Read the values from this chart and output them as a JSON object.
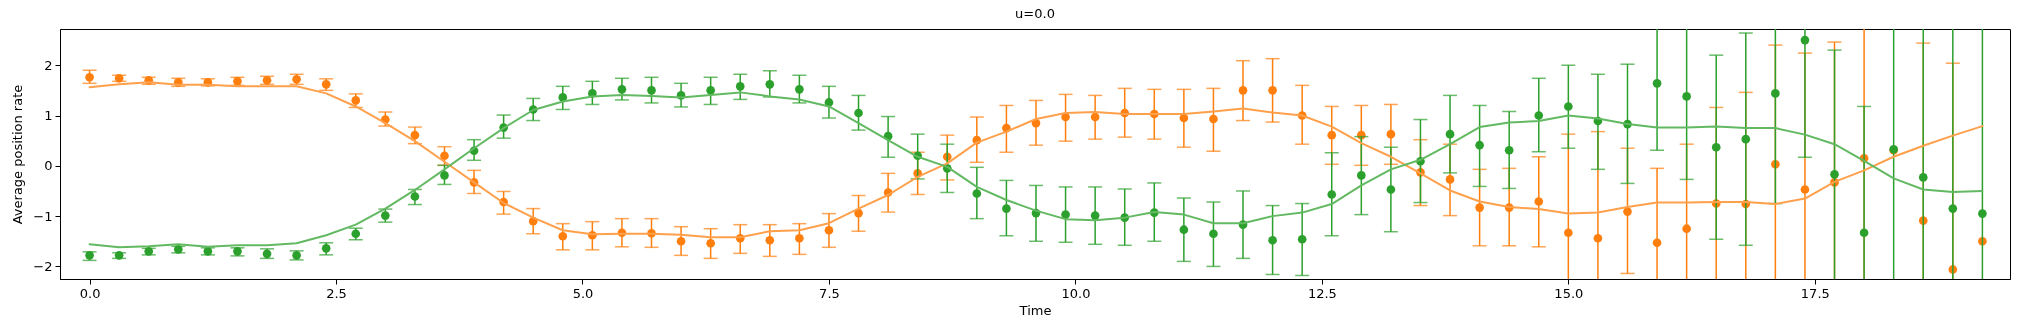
{
  "chart_data": {
    "type": "scatter",
    "title": "u=0.0",
    "xlabel": "Time",
    "ylabel": "Average position rate",
    "x": [
      0,
      0.3,
      0.6,
      0.9,
      1.2,
      1.5,
      1.8,
      2.1,
      2.4,
      2.7,
      3.0,
      3.3,
      3.6,
      3.9,
      4.2,
      4.5,
      4.8,
      5.1,
      5.4,
      5.7,
      6.0,
      6.3,
      6.6,
      6.9,
      7.2,
      7.5,
      7.8,
      8.1,
      8.4,
      8.7,
      9.0,
      9.3,
      9.6,
      9.9,
      10.2,
      10.5,
      10.8,
      11.1,
      11.4,
      11.7,
      12.0,
      12.3,
      12.6,
      12.9,
      13.2,
      13.5,
      13.8,
      14.1,
      14.4,
      14.7,
      15.0,
      15.3,
      15.6,
      15.9,
      16.2,
      16.5,
      16.8,
      17.1,
      17.4,
      17.7,
      18.0,
      18.3,
      18.6,
      18.9,
      19.2
    ],
    "series": [
      {
        "marker": "circle",
        "color": "#ff7f0e",
        "values": [
          1.76,
          1.74,
          1.7,
          1.66,
          1.66,
          1.68,
          1.7,
          1.72,
          1.62,
          1.3,
          0.92,
          0.61,
          0.2,
          -0.33,
          -0.72,
          -1.1,
          -1.4,
          -1.38,
          -1.33,
          -1.34,
          -1.5,
          -1.54,
          -1.44,
          -1.48,
          -1.44,
          -1.28,
          -0.94,
          -0.53,
          -0.15,
          0.18,
          0.51,
          0.75,
          0.85,
          0.97,
          0.97,
          1.05,
          1.03,
          0.95,
          0.93,
          1.5,
          1.5,
          1.0,
          0.61,
          0.61,
          0.63,
          -0.13,
          -0.27,
          -0.83,
          -0.83,
          -0.71,
          -1.33,
          -1.44,
          -0.91,
          -1.53,
          -1.25,
          -0.75,
          -0.76,
          0.03,
          -0.47,
          -0.33,
          0.15,
          0.31,
          -1.09,
          -2.06,
          -1.5
        ],
        "errors": [
          [
            1.64,
            1.9
          ],
          [
            1.68,
            1.8
          ],
          [
            1.62,
            1.76
          ],
          [
            1.58,
            1.74
          ],
          [
            1.59,
            1.73
          ],
          [
            1.6,
            1.76
          ],
          [
            1.62,
            1.78
          ],
          [
            1.62,
            1.82
          ],
          [
            1.5,
            1.73
          ],
          [
            1.16,
            1.43
          ],
          [
            0.79,
            1.07
          ],
          [
            0.44,
            0.77
          ],
          [
            0.01,
            0.38
          ],
          [
            -0.55,
            -0.09
          ],
          [
            -0.96,
            -0.51
          ],
          [
            -1.35,
            -0.85
          ],
          [
            -1.67,
            -1.15
          ],
          [
            -1.67,
            -1.11
          ],
          [
            -1.61,
            -1.05
          ],
          [
            -1.62,
            -1.05
          ],
          [
            -1.78,
            -1.21
          ],
          [
            -1.84,
            -1.25
          ],
          [
            -1.74,
            -1.17
          ],
          [
            -1.8,
            -1.17
          ],
          [
            -1.76,
            -1.15
          ],
          [
            -1.62,
            -0.95
          ],
          [
            -1.3,
            -0.59
          ],
          [
            -0.92,
            -0.15
          ],
          [
            -0.57,
            0.27
          ],
          [
            -0.28,
            0.61
          ],
          [
            0.07,
            0.97
          ],
          [
            0.27,
            1.2
          ],
          [
            0.41,
            1.3
          ],
          [
            0.49,
            1.42
          ],
          [
            0.53,
            1.4
          ],
          [
            0.57,
            1.54
          ],
          [
            0.53,
            1.52
          ],
          [
            0.37,
            1.52
          ],
          [
            0.29,
            1.54
          ],
          [
            0.9,
            2.09
          ],
          [
            0.87,
            2.13
          ],
          [
            0.43,
            1.6
          ],
          [
            0.03,
            1.18
          ],
          [
            0.01,
            1.2
          ],
          [
            0.03,
            1.22
          ],
          [
            -0.79,
            0.52
          ],
          [
            -0.99,
            0.43
          ],
          [
            -1.59,
            -0.07
          ],
          [
            -1.59,
            -0.05
          ],
          [
            -1.61,
            0.18
          ],
          [
            -2.25,
            0.63
          ],
          [
            -2.25,
            0.68
          ],
          [
            -2.14,
            0.35
          ],
          [
            -2.25,
            -0.05
          ],
          [
            -2.25,
            0.43
          ],
          [
            -2.25,
            1.16
          ],
          [
            -2.25,
            1.46
          ],
          [
            -2.25,
            2.4
          ],
          [
            -2.25,
            2.24
          ],
          [
            -2.25,
            2.46
          ],
          [
            -2.25,
            2.72
          ],
          null,
          [
            -2.25,
            2.44
          ],
          [
            -2.25,
            2.04
          ],
          null
        ]
      },
      {
        "marker": "circle",
        "color": "#2ca02c",
        "values": [
          -1.78,
          -1.78,
          -1.7,
          -1.66,
          -1.7,
          -1.7,
          -1.75,
          -1.78,
          -1.64,
          -1.35,
          -0.99,
          -0.61,
          -0.19,
          0.3,
          0.76,
          1.12,
          1.36,
          1.44,
          1.52,
          1.5,
          1.4,
          1.5,
          1.58,
          1.62,
          1.52,
          1.26,
          1.05,
          0.59,
          0.2,
          -0.05,
          -0.55,
          -0.85,
          -0.94,
          -0.97,
          -0.99,
          -1.03,
          -0.93,
          -1.27,
          -1.35,
          -1.17,
          -1.48,
          -1.46,
          -0.57,
          -0.19,
          -0.47,
          0.09,
          0.63,
          0.41,
          0.31,
          1.0,
          1.18,
          0.89,
          0.83,
          1.64,
          1.38,
          0.37,
          0.53,
          1.44,
          2.5,
          -0.17,
          -1.33,
          0.33,
          -0.23,
          -0.85,
          -0.95
        ],
        "errors": [
          [
            -1.88,
            -1.71
          ],
          [
            -1.84,
            -1.73
          ],
          [
            -1.77,
            -1.64
          ],
          [
            -1.73,
            -1.6
          ],
          [
            -1.77,
            -1.63
          ],
          [
            -1.79,
            -1.63
          ],
          [
            -1.84,
            -1.65
          ],
          [
            -1.87,
            -1.69
          ],
          [
            -1.77,
            -1.53
          ],
          [
            -1.47,
            -1.24
          ],
          [
            -1.12,
            -0.86
          ],
          [
            -0.77,
            -0.47
          ],
          [
            -0.37,
            0.01
          ],
          [
            0.11,
            0.52
          ],
          [
            0.55,
            1.01
          ],
          [
            0.9,
            1.34
          ],
          [
            1.12,
            1.58
          ],
          [
            1.22,
            1.68
          ],
          [
            1.31,
            1.74
          ],
          [
            1.25,
            1.76
          ],
          [
            1.17,
            1.64
          ],
          [
            1.22,
            1.76
          ],
          [
            1.32,
            1.82
          ],
          [
            1.37,
            1.89
          ],
          [
            1.25,
            1.8
          ],
          [
            0.95,
            1.58
          ],
          [
            0.71,
            1.4
          ],
          [
            0.17,
            0.98
          ],
          [
            -0.26,
            0.63
          ],
          [
            -0.53,
            0.43
          ],
          [
            -1.05,
            -0.03
          ],
          [
            -1.39,
            -0.29
          ],
          [
            -1.5,
            -0.39
          ],
          [
            -1.52,
            -0.42
          ],
          [
            -1.56,
            -0.42
          ],
          [
            -1.58,
            -0.46
          ],
          [
            -1.5,
            -0.34
          ],
          [
            -1.9,
            -0.64
          ],
          [
            -2.0,
            -0.72
          ],
          [
            -1.84,
            -0.5
          ],
          [
            -2.16,
            -0.79
          ],
          [
            -2.18,
            -0.75
          ],
          [
            -1.39,
            0.26
          ],
          [
            -0.97,
            0.58
          ],
          [
            -1.31,
            0.37
          ],
          [
            -0.73,
            0.92
          ],
          [
            -0.14,
            1.4
          ],
          [
            -0.41,
            1.2
          ],
          [
            -0.45,
            1.08
          ],
          [
            0.28,
            1.74
          ],
          [
            0.35,
            2.0
          ],
          [
            -0.07,
            1.82
          ],
          [
            -0.35,
            2.02
          ],
          [
            0.31,
            2.72
          ],
          [
            -0.27,
            2.72
          ],
          [
            -1.46,
            2.2
          ],
          [
            -1.58,
            2.64
          ],
          [
            -0.75,
            2.72
          ],
          [
            0.17,
            2.72
          ],
          [
            -2.25,
            2.3
          ],
          [
            -2.25,
            1.18
          ],
          [
            -2.25,
            2.72
          ],
          [
            -2.25,
            2.72
          ],
          [
            -2.25,
            2.72
          ],
          [
            -2.25,
            2.72
          ]
        ]
      },
      {
        "type": "line",
        "color": "#ffa04c",
        "values": [
          1.56,
          1.62,
          1.66,
          1.61,
          1.61,
          1.58,
          1.58,
          1.58,
          1.44,
          1.18,
          0.85,
          0.49,
          0.08,
          -0.33,
          -0.74,
          -1.03,
          -1.28,
          -1.36,
          -1.35,
          -1.35,
          -1.37,
          -1.42,
          -1.42,
          -1.3,
          -1.28,
          -1.14,
          -0.85,
          -0.58,
          -0.22,
          0.05,
          0.46,
          0.68,
          0.93,
          1.05,
          1.07,
          1.03,
          1.03,
          1.03,
          1.08,
          1.14,
          1.06,
          1.0,
          0.78,
          0.45,
          0.18,
          -0.15,
          -0.49,
          -0.71,
          -0.82,
          -0.86,
          -0.95,
          -0.93,
          -0.82,
          -0.73,
          -0.73,
          -0.72,
          -0.72,
          -0.76,
          -0.65,
          -0.32,
          -0.09,
          0.18,
          0.4,
          0.6,
          0.79
        ]
      },
      {
        "type": "line",
        "color": "#62b962",
        "values": [
          -1.56,
          -1.62,
          -1.6,
          -1.56,
          -1.61,
          -1.58,
          -1.58,
          -1.54,
          -1.38,
          -1.17,
          -0.85,
          -0.48,
          -0.07,
          0.35,
          0.75,
          1.11,
          1.28,
          1.38,
          1.41,
          1.39,
          1.36,
          1.41,
          1.46,
          1.38,
          1.32,
          1.18,
          0.85,
          0.51,
          0.18,
          -0.02,
          -0.42,
          -0.68,
          -0.89,
          -1.06,
          -1.08,
          -1.03,
          -0.92,
          -0.97,
          -1.14,
          -1.14,
          -1.0,
          -0.93,
          -0.76,
          -0.39,
          -0.07,
          0.12,
          0.43,
          0.77,
          0.86,
          0.89,
          1.0,
          0.94,
          0.83,
          0.76,
          0.76,
          0.78,
          0.75,
          0.75,
          0.62,
          0.43,
          0.1,
          -0.25,
          -0.47,
          -0.52,
          -0.5
        ]
      }
    ],
    "grid": false,
    "xlim": [
      -0.3,
      19.48
    ],
    "ylim": [
      -2.25,
      2.72
    ],
    "xticks": [
      {
        "value": 0,
        "label": "0.0"
      },
      {
        "value": 2.5,
        "label": "2.5"
      },
      {
        "value": 5,
        "label": "5.0"
      },
      {
        "value": 7.5,
        "label": "7.5"
      },
      {
        "value": 10,
        "label": "10.0"
      },
      {
        "value": 12.5,
        "label": "12.5"
      },
      {
        "value": 15,
        "label": "15.0"
      },
      {
        "value": 17.5,
        "label": "17.5"
      }
    ],
    "yticks": [
      {
        "value": -2,
        "label": "−2"
      },
      {
        "value": -1,
        "label": "−1"
      },
      0,
      1,
      2
    ]
  }
}
